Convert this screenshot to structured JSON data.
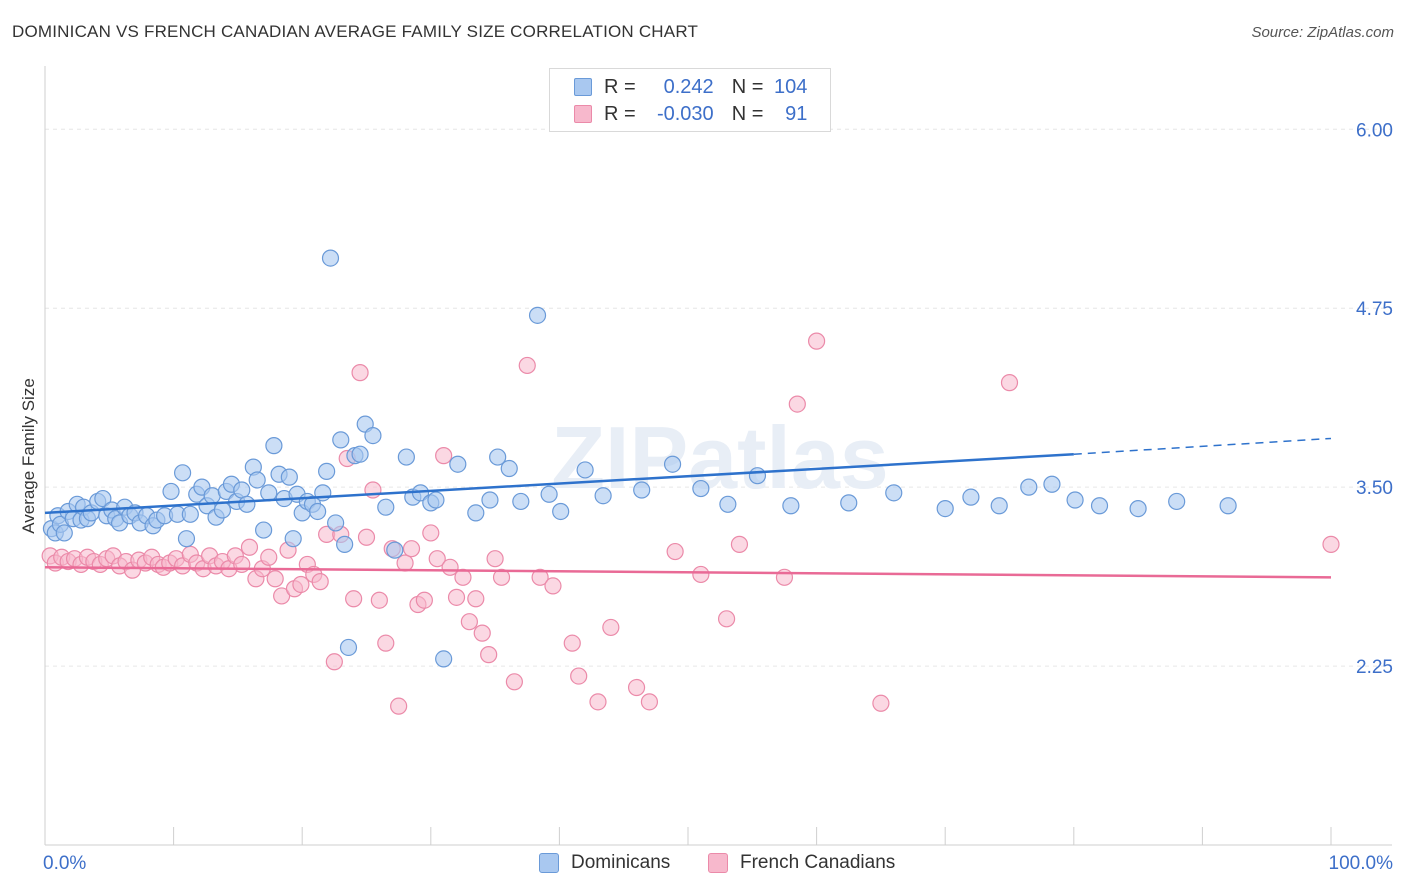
{
  "title": "DOMINICAN VS FRENCH CANADIAN AVERAGE FAMILY SIZE CORRELATION CHART",
  "source": "Source: ZipAtlas.com",
  "watermark": "ZIPatlas",
  "legend_top": {
    "rows": [
      {
        "r_label": "R =",
        "r_value": "0.242",
        "n_label": "N =",
        "n_value": "104"
      },
      {
        "r_label": "R =",
        "r_value": "-0.030",
        "n_label": "N =",
        "n_value": "91"
      }
    ]
  },
  "legend_bottom": [
    "Dominicans",
    "French Canadians"
  ],
  "colors": {
    "dominicans_fill": "#a9c8f0",
    "dominicans_stroke": "#6a9ad8",
    "dominicans_line": "#2e72cc",
    "french_fill": "#f7b8cc",
    "french_stroke": "#eb8aa9",
    "french_line": "#e96a96",
    "axis_text": "#3d6fc9",
    "grid": "#e6e6e6"
  },
  "chart_data": {
    "type": "scatter",
    "title": "DOMINICAN VS FRENCH CANADIAN AVERAGE FAMILY SIZE CORRELATION CHART",
    "xlabel": "",
    "ylabel": "Average Family Size",
    "xlim": [
      0,
      100
    ],
    "ylim": [
      1.0,
      6.4
    ],
    "x_tick_labels": [
      "0.0%",
      "100.0%"
    ],
    "y_ticks": [
      2.25,
      3.5,
      4.75,
      6.0
    ],
    "y_tick_labels": [
      "2.25",
      "3.50",
      "4.75",
      "6.00"
    ],
    "grid": true,
    "legend_position": "top-center",
    "series": [
      {
        "name": "Dominicans",
        "r": 0.242,
        "n": 104,
        "trend": {
          "x": [
            0,
            80
          ],
          "y": [
            3.32,
            3.73
          ],
          "dashed_to_x": 100,
          "dashed_to_y": 3.84
        },
        "points": [
          [
            0.5,
            3.21
          ],
          [
            0.8,
            3.18
          ],
          [
            1.0,
            3.3
          ],
          [
            1.2,
            3.24
          ],
          [
            1.5,
            3.18
          ],
          [
            1.8,
            3.33
          ],
          [
            2.2,
            3.28
          ],
          [
            2.5,
            3.38
          ],
          [
            2.8,
            3.27
          ],
          [
            3.0,
            3.36
          ],
          [
            3.3,
            3.28
          ],
          [
            3.6,
            3.32
          ],
          [
            4.1,
            3.4
          ],
          [
            4.5,
            3.42
          ],
          [
            4.8,
            3.3
          ],
          [
            5.2,
            3.34
          ],
          [
            5.5,
            3.28
          ],
          [
            5.8,
            3.25
          ],
          [
            6.2,
            3.36
          ],
          [
            6.6,
            3.3
          ],
          [
            7.0,
            3.32
          ],
          [
            7.4,
            3.25
          ],
          [
            7.9,
            3.3
          ],
          [
            8.4,
            3.23
          ],
          [
            8.7,
            3.27
          ],
          [
            9.3,
            3.3
          ],
          [
            9.8,
            3.47
          ],
          [
            10.3,
            3.31
          ],
          [
            10.7,
            3.6
          ],
          [
            11.0,
            3.14
          ],
          [
            11.3,
            3.31
          ],
          [
            11.8,
            3.45
          ],
          [
            12.2,
            3.5
          ],
          [
            12.6,
            3.37
          ],
          [
            13.0,
            3.44
          ],
          [
            13.3,
            3.29
          ],
          [
            13.8,
            3.34
          ],
          [
            14.1,
            3.47
          ],
          [
            14.5,
            3.52
          ],
          [
            14.9,
            3.4
          ],
          [
            15.3,
            3.48
          ],
          [
            15.7,
            3.38
          ],
          [
            16.2,
            3.64
          ],
          [
            16.5,
            3.55
          ],
          [
            17.0,
            3.2
          ],
          [
            17.4,
            3.46
          ],
          [
            17.8,
            3.79
          ],
          [
            18.2,
            3.59
          ],
          [
            18.6,
            3.42
          ],
          [
            19.0,
            3.57
          ],
          [
            19.3,
            3.14
          ],
          [
            19.6,
            3.45
          ],
          [
            20.0,
            3.32
          ],
          [
            20.4,
            3.4
          ],
          [
            20.8,
            3.38
          ],
          [
            21.2,
            3.33
          ],
          [
            21.6,
            3.46
          ],
          [
            21.9,
            3.61
          ],
          [
            22.2,
            5.1
          ],
          [
            22.6,
            3.25
          ],
          [
            23.0,
            3.83
          ],
          [
            23.3,
            3.1
          ],
          [
            23.6,
            2.38
          ],
          [
            24.1,
            3.72
          ],
          [
            24.5,
            3.73
          ],
          [
            24.9,
            3.94
          ],
          [
            25.5,
            3.86
          ],
          [
            26.5,
            3.36
          ],
          [
            27.2,
            3.06
          ],
          [
            28.1,
            3.71
          ],
          [
            28.6,
            3.43
          ],
          [
            29.2,
            3.46
          ],
          [
            30.0,
            3.39
          ],
          [
            30.4,
            3.41
          ],
          [
            31.0,
            2.3
          ],
          [
            32.1,
            3.66
          ],
          [
            33.5,
            3.32
          ],
          [
            34.6,
            3.41
          ],
          [
            35.2,
            3.71
          ],
          [
            36.1,
            3.63
          ],
          [
            37.0,
            3.4
          ],
          [
            38.3,
            4.7
          ],
          [
            39.2,
            3.45
          ],
          [
            40.1,
            3.33
          ],
          [
            42.0,
            3.62
          ],
          [
            43.4,
            3.44
          ],
          [
            46.4,
            3.48
          ],
          [
            48.8,
            3.66
          ],
          [
            51.0,
            3.49
          ],
          [
            53.1,
            3.38
          ],
          [
            55.4,
            3.58
          ],
          [
            58.0,
            3.37
          ],
          [
            62.5,
            3.39
          ],
          [
            66.0,
            3.46
          ],
          [
            70.0,
            3.35
          ],
          [
            72.0,
            3.43
          ],
          [
            74.2,
            3.37
          ],
          [
            76.5,
            3.5
          ],
          [
            78.3,
            3.52
          ],
          [
            80.1,
            3.41
          ],
          [
            82.0,
            3.37
          ],
          [
            85.0,
            3.35
          ],
          [
            88.0,
            3.4
          ],
          [
            92.0,
            3.37
          ]
        ]
      },
      {
        "name": "French Canadians",
        "r": -0.03,
        "n": 91,
        "trend": {
          "x": [
            0,
            100
          ],
          "y": [
            2.94,
            2.87
          ]
        },
        "points": [
          [
            0.4,
            3.02
          ],
          [
            0.8,
            2.97
          ],
          [
            1.3,
            3.01
          ],
          [
            1.8,
            2.98
          ],
          [
            2.3,
            3.0
          ],
          [
            2.8,
            2.96
          ],
          [
            3.3,
            3.01
          ],
          [
            3.8,
            2.98
          ],
          [
            4.3,
            2.96
          ],
          [
            4.8,
            3.0
          ],
          [
            5.3,
            3.02
          ],
          [
            5.8,
            2.95
          ],
          [
            6.3,
            2.98
          ],
          [
            6.8,
            2.92
          ],
          [
            7.3,
            2.99
          ],
          [
            7.8,
            2.97
          ],
          [
            8.3,
            3.01
          ],
          [
            8.8,
            2.96
          ],
          [
            9.2,
            2.94
          ],
          [
            9.7,
            2.97
          ],
          [
            10.2,
            3.0
          ],
          [
            10.7,
            2.95
          ],
          [
            11.3,
            3.03
          ],
          [
            11.8,
            2.97
          ],
          [
            12.3,
            2.93
          ],
          [
            12.8,
            3.02
          ],
          [
            13.3,
            2.95
          ],
          [
            13.8,
            2.98
          ],
          [
            14.3,
            2.93
          ],
          [
            14.8,
            3.02
          ],
          [
            15.3,
            2.96
          ],
          [
            15.9,
            3.08
          ],
          [
            16.4,
            2.86
          ],
          [
            16.9,
            2.93
          ],
          [
            17.4,
            3.01
          ],
          [
            17.9,
            2.86
          ],
          [
            18.4,
            2.74
          ],
          [
            18.9,
            3.06
          ],
          [
            19.4,
            2.79
          ],
          [
            19.9,
            2.82
          ],
          [
            20.4,
            2.96
          ],
          [
            20.9,
            2.89
          ],
          [
            21.4,
            2.84
          ],
          [
            21.9,
            3.17
          ],
          [
            22.5,
            2.28
          ],
          [
            23.0,
            3.17
          ],
          [
            23.5,
            3.7
          ],
          [
            24.0,
            2.72
          ],
          [
            24.5,
            4.3
          ],
          [
            25.0,
            3.15
          ],
          [
            25.5,
            3.48
          ],
          [
            26.0,
            2.71
          ],
          [
            26.5,
            2.41
          ],
          [
            27.0,
            3.07
          ],
          [
            27.5,
            1.97
          ],
          [
            28.0,
            2.97
          ],
          [
            28.5,
            3.07
          ],
          [
            29.0,
            2.68
          ],
          [
            29.5,
            2.71
          ],
          [
            30.0,
            3.18
          ],
          [
            30.5,
            3.0
          ],
          [
            31.0,
            3.72
          ],
          [
            31.5,
            2.94
          ],
          [
            32.0,
            2.73
          ],
          [
            32.5,
            2.87
          ],
          [
            33.0,
            2.56
          ],
          [
            33.5,
            2.72
          ],
          [
            34.0,
            2.48
          ],
          [
            34.5,
            2.33
          ],
          [
            35.0,
            3.0
          ],
          [
            35.5,
            2.87
          ],
          [
            36.5,
            2.14
          ],
          [
            37.5,
            4.35
          ],
          [
            38.5,
            2.87
          ],
          [
            39.5,
            2.81
          ],
          [
            41.0,
            2.41
          ],
          [
            41.5,
            2.18
          ],
          [
            43.0,
            2.0
          ],
          [
            44.0,
            2.52
          ],
          [
            46.0,
            2.1
          ],
          [
            47.0,
            2.0
          ],
          [
            49.0,
            3.05
          ],
          [
            51.0,
            2.89
          ],
          [
            54.0,
            3.1
          ],
          [
            57.5,
            2.87
          ],
          [
            58.5,
            4.08
          ],
          [
            60.0,
            4.52
          ],
          [
            65.0,
            1.99
          ],
          [
            75.0,
            4.23
          ],
          [
            100.0,
            3.1
          ],
          [
            53.0,
            2.58
          ]
        ]
      }
    ]
  }
}
